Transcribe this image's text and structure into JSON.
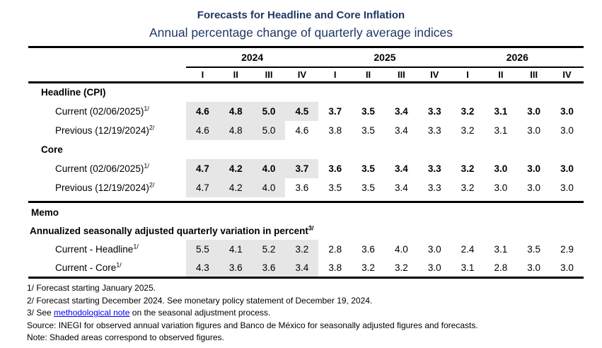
{
  "title": "Forecasts for Headline and Core Inflation",
  "subtitle": "Annual percentage change of quarterly average indices",
  "colors": {
    "title_navy": "#1f3864",
    "observed_shading": "#e7e6e6",
    "link_blue": "#0000ee"
  },
  "table": {
    "years": [
      "2024",
      "2025",
      "2026"
    ],
    "quarters": [
      "I",
      "II",
      "III",
      "IV",
      "I",
      "II",
      "III",
      "IV",
      "I",
      "II",
      "III",
      "IV"
    ],
    "rows": [
      {
        "type": "section",
        "label": "Headline (CPI)"
      },
      {
        "type": "data",
        "label": "Current (02/06/2025)",
        "sup": "1/",
        "bold": true,
        "shaded": 4,
        "values": [
          "4.6",
          "4.8",
          "5.0",
          "4.5",
          "3.7",
          "3.5",
          "3.4",
          "3.3",
          "3.2",
          "3.1",
          "3.0",
          "3.0"
        ]
      },
      {
        "type": "data",
        "label": "Previous (12/19/2024)",
        "sup": "2/",
        "bold": false,
        "shaded": 3,
        "values": [
          "4.6",
          "4.8",
          "5.0",
          "4.6",
          "3.8",
          "3.5",
          "3.4",
          "3.3",
          "3.2",
          "3.1",
          "3.0",
          "3.0"
        ]
      },
      {
        "type": "section",
        "label": "Core"
      },
      {
        "type": "data",
        "label": "Current (02/06/2025)",
        "sup": "1/",
        "bold": true,
        "shaded": 4,
        "values": [
          "4.7",
          "4.2",
          "4.0",
          "3.7",
          "3.6",
          "3.5",
          "3.4",
          "3.3",
          "3.2",
          "3.0",
          "3.0",
          "3.0"
        ]
      },
      {
        "type": "data",
        "label": "Previous (12/19/2024)",
        "sup": "2/",
        "bold": false,
        "shaded": 3,
        "values": [
          "4.7",
          "4.2",
          "4.0",
          "3.6",
          "3.5",
          "3.5",
          "3.4",
          "3.3",
          "3.2",
          "3.0",
          "3.0",
          "3.0"
        ]
      },
      {
        "type": "memo-title",
        "label": "Memo"
      },
      {
        "type": "memo-subtitle",
        "label": "Annualized seasonally adjusted quarterly variation in percent",
        "sup": "3/"
      },
      {
        "type": "data",
        "label": "Current - Headline",
        "sup": "1/",
        "bold": false,
        "shaded": 4,
        "values": [
          "5.5",
          "4.1",
          "5.2",
          "3.2",
          "2.8",
          "3.6",
          "4.0",
          "3.0",
          "2.4",
          "3.1",
          "3.5",
          "2.9"
        ]
      },
      {
        "type": "data",
        "label": "Current - Core",
        "sup": "1/",
        "bold": false,
        "shaded": 4,
        "values": [
          "4.3",
          "3.6",
          "3.6",
          "3.4",
          "3.8",
          "3.2",
          "3.2",
          "3.0",
          "3.1",
          "2.8",
          "3.0",
          "3.0"
        ]
      }
    ]
  },
  "footnotes": [
    {
      "text": "1/ Forecast starting January 2025."
    },
    {
      "text": "2/ Forecast starting December 2024. See monetary policy statement of December 19, 2024."
    },
    {
      "prefix": "3/ See ",
      "link": "methodological note",
      "suffix": " on the seasonal adjustment process."
    },
    {
      "text": "Source: INEGI for observed annual variation figures and Banco de México for seasonally adjusted figures and forecasts."
    },
    {
      "text": "Note: Shaded areas correspond to observed figures."
    }
  ]
}
